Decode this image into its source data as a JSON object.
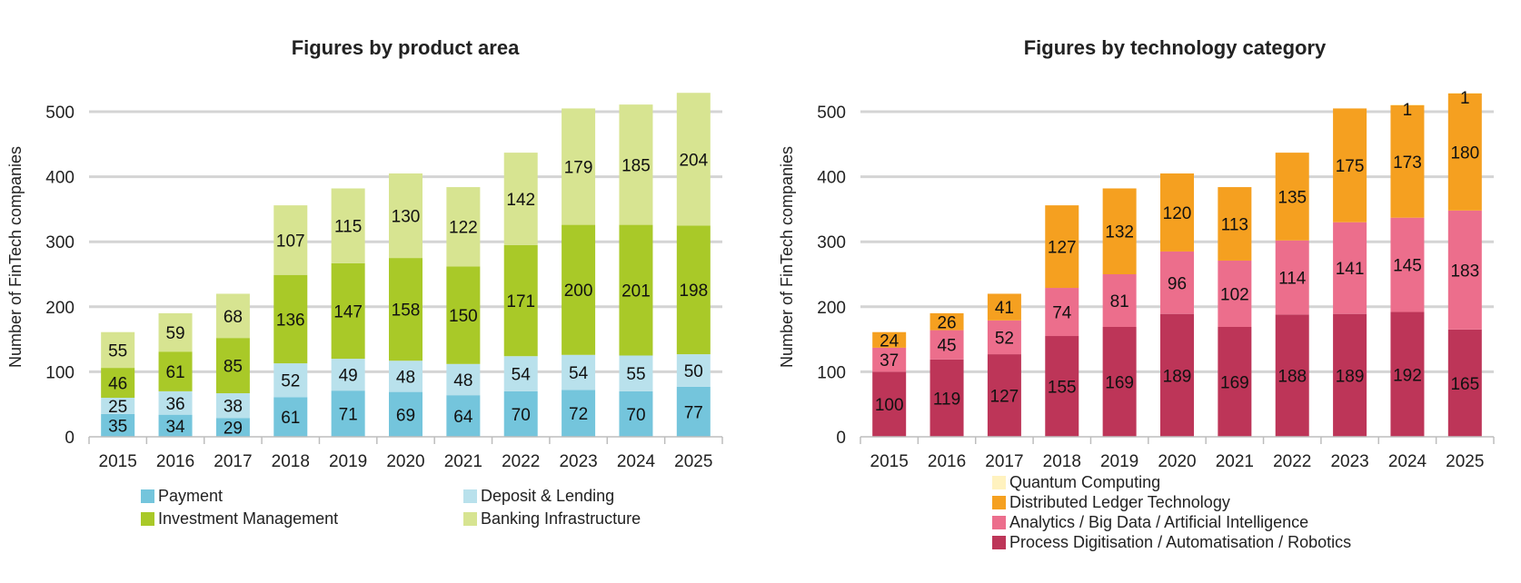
{
  "chart_data": [
    {
      "type": "bar",
      "stacked": true,
      "title": "Figures by product area",
      "ylabel": "Number of FinTech companies",
      "xlabel": "",
      "categories": [
        "2015",
        "2016",
        "2017",
        "2018",
        "2019",
        "2020",
        "2021",
        "2022",
        "2023",
        "2024",
        "2025"
      ],
      "ylim": [
        0,
        500
      ],
      "yticks": [
        0,
        100,
        200,
        300,
        400,
        500
      ],
      "grid": true,
      "legend_position": "bottom",
      "series": [
        {
          "name": "Payment",
          "color": "#74c5dc",
          "values": [
            35,
            34,
            29,
            61,
            71,
            69,
            64,
            70,
            72,
            70,
            77
          ]
        },
        {
          "name": "Deposit & Lending",
          "color": "#b9e1ec",
          "values": [
            25,
            36,
            38,
            52,
            49,
            48,
            48,
            54,
            54,
            55,
            50
          ]
        },
        {
          "name": "Investment Management",
          "color": "#a9c928",
          "values": [
            46,
            61,
            85,
            136,
            147,
            158,
            150,
            171,
            200,
            201,
            198
          ]
        },
        {
          "name": "Banking Infrastructure",
          "color": "#d7e491",
          "values": [
            55,
            59,
            68,
            107,
            115,
            130,
            122,
            142,
            179,
            185,
            204
          ]
        }
      ]
    },
    {
      "type": "bar",
      "stacked": true,
      "title": "Figures by technology category",
      "ylabel": "Number of FinTech companies",
      "xlabel": "",
      "categories": [
        "2015",
        "2016",
        "2017",
        "2018",
        "2019",
        "2020",
        "2021",
        "2022",
        "2023",
        "2024",
        "2025"
      ],
      "ylim": [
        0,
        500
      ],
      "yticks": [
        0,
        100,
        200,
        300,
        400,
        500
      ],
      "grid": true,
      "legend_position": "bottom",
      "series": [
        {
          "name": "Process Digitisation / Automatisation / Robotics",
          "color": "#bd3558",
          "values": [
            100,
            119,
            127,
            155,
            169,
            189,
            169,
            188,
            189,
            192,
            165
          ]
        },
        {
          "name": "Analytics / Big Data / Artificial Intelligence",
          "color": "#ec6e8c",
          "values": [
            37,
            45,
            52,
            74,
            81,
            96,
            102,
            114,
            141,
            145,
            183
          ]
        },
        {
          "name": "Distributed Ledger Technology",
          "color": "#f5a020",
          "values": [
            24,
            26,
            41,
            127,
            132,
            120,
            113,
            135,
            175,
            173,
            180
          ]
        },
        {
          "name": "Quantum Computing",
          "color": "#fff2bf",
          "values": [
            0,
            0,
            0,
            0,
            0,
            0,
            0,
            0,
            0,
            1,
            1
          ]
        }
      ]
    }
  ]
}
